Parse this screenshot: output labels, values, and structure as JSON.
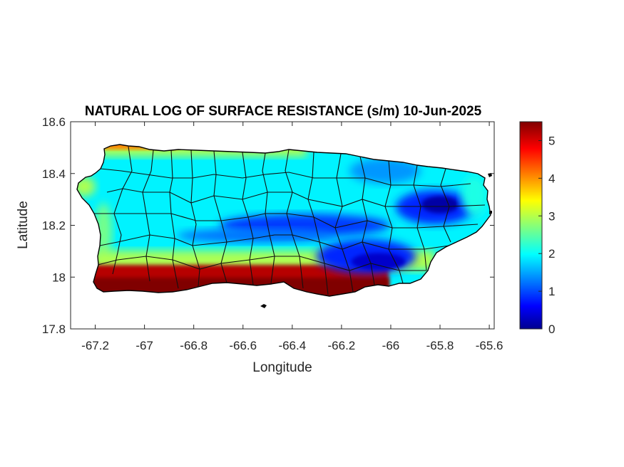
{
  "chart_data": {
    "type": "heatmap",
    "title": "NATURAL LOG OF SURFACE RESISTANCE (s/m) 10-Jun-2025",
    "xlabel": "Longitude",
    "ylabel": "Latitude",
    "xlim": [
      -67.3,
      -65.58
    ],
    "ylim": [
      17.8,
      18.6
    ],
    "xticks": [
      "-67.2",
      "-67",
      "-66.8",
      "-66.6",
      "-66.4",
      "-66.2",
      "-66",
      "-65.8",
      "-65.6"
    ],
    "xtick_values": [
      -67.2,
      -67.0,
      -66.8,
      -66.6,
      -66.4,
      -66.2,
      -66.0,
      -65.8,
      -65.6
    ],
    "yticks": [
      "17.8",
      "18",
      "18.2",
      "18.4",
      "18.6"
    ],
    "ytick_values": [
      17.8,
      18.0,
      18.2,
      18.4,
      18.6
    ],
    "colorbar": {
      "colormap": "jet",
      "clim": [
        0,
        5.5
      ],
      "ticks": [
        "0",
        "1",
        "2",
        "3",
        "4",
        "5"
      ],
      "tick_values": [
        0,
        1,
        2,
        3,
        4,
        5
      ]
    },
    "grid": false,
    "region_fields": [
      {
        "region": "island interior (typical)",
        "value": 2.0
      },
      {
        "region": "north coast",
        "value": 3.0
      },
      {
        "region": "western tip",
        "value": 3.0
      },
      {
        "region": "south coast",
        "value": 5.2
      },
      {
        "region": "northeast low near -65.8, 18.28",
        "value": 0.2
      },
      {
        "region": "central-east low near -66.05, 18.06",
        "value": 0.4
      },
      {
        "region": "central band near -66.35, 18.2",
        "value": 1.0
      }
    ]
  },
  "colors": {
    "coastline": "#000000",
    "axes": "#262626",
    "background": "#ffffff"
  }
}
